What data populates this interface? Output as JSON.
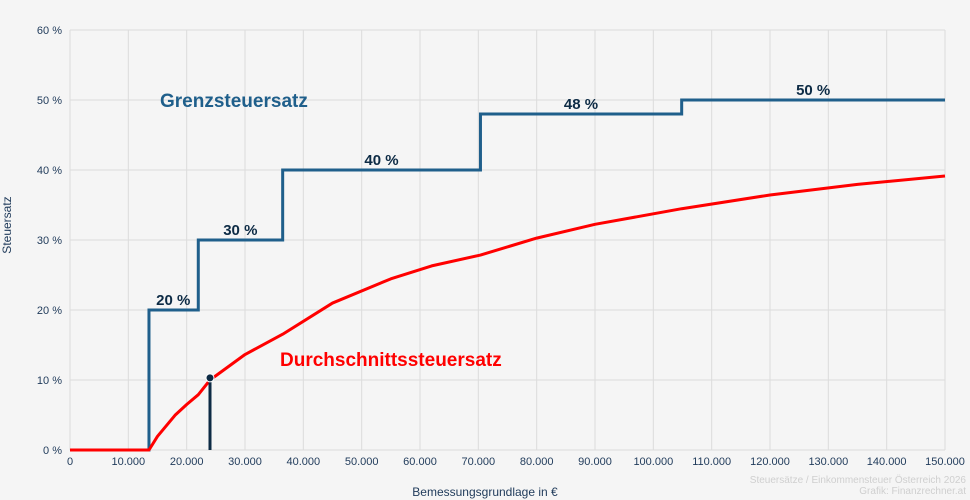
{
  "chart_data": {
    "type": "line",
    "xlabel": "Bemessungsgrundlage in €",
    "ylabel": "Steuersatz",
    "xlim": [
      0,
      150000
    ],
    "ylim": [
      0,
      60
    ],
    "grid": true,
    "x_ticks": [
      "0",
      "10.000",
      "20.000",
      "30.000",
      "40.000",
      "50.000",
      "60.000",
      "70.000",
      "80.000",
      "90.000",
      "100.000",
      "110.000",
      "120.000",
      "130.000",
      "140.000",
      "150.000"
    ],
    "y_ticks": [
      "0 %",
      "10 %",
      "20 %",
      "30 %",
      "40 %",
      "50 %",
      "60 %"
    ],
    "series": [
      {
        "name": "Grenzsteuersatz",
        "color": "#1f5f8b",
        "step": true,
        "x": [
          0,
          13539,
          21992,
          36458,
          70365,
          104859,
          150000
        ],
        "y": [
          0,
          20,
          30,
          40,
          48,
          50,
          50
        ],
        "step_labels": [
          {
            "x": 17700,
            "y": 20,
            "text": "20 %"
          },
          {
            "x": 29200,
            "y": 30,
            "text": "30 %"
          },
          {
            "x": 53400,
            "y": 40,
            "text": "40 %"
          },
          {
            "x": 87600,
            "y": 48,
            "text": "48 %"
          },
          {
            "x": 127400,
            "y": 50,
            "text": "50 %"
          }
        ]
      },
      {
        "name": "Durchschnittssteuersatz",
        "color": "#ff0000",
        "x": [
          0,
          13539,
          15000,
          18000,
          20000,
          21992,
          24000,
          30000,
          36458,
          45000,
          55000,
          62000,
          70365,
          80000,
          90000,
          104859,
          120000,
          135000,
          150000
        ],
        "y": [
          0,
          0,
          1.95,
          4.96,
          6.5,
          7.9,
          10.0,
          13.64,
          16.54,
          20.99,
          24.45,
          26.3,
          27.85,
          30.27,
          32.24,
          34.47,
          36.43,
          37.94,
          39.15
        ]
      }
    ],
    "marker": {
      "x": 24000,
      "y": 10.3,
      "color": "#0d2b45"
    },
    "annotations": [
      {
        "text": "Grenzsteuersatz",
        "color": "#1f5f8b"
      },
      {
        "text": "Durchschnittssteuersatz",
        "color": "#ff0000"
      }
    ]
  },
  "footer": {
    "line1": "Steuersätze / Einkommensteuer Österreich 2026",
    "line2": "Grafik: Finanzrechner.at"
  }
}
